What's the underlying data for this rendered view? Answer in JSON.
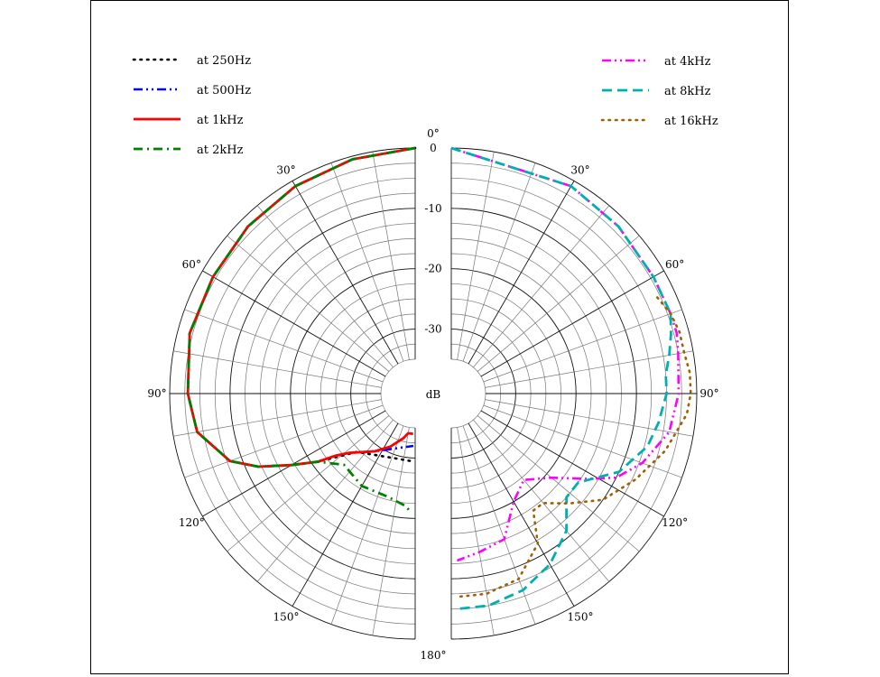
{
  "chart_data": {
    "type": "polar",
    "radial_unit": "dB",
    "radial_ticks": [
      "0",
      "-10",
      "-20",
      "-30"
    ],
    "rlim": [
      -35,
      0
    ],
    "angle_ticks": [
      "0°",
      "30°",
      "60°",
      "90°",
      "120°",
      "150°",
      "180°"
    ],
    "grid": true,
    "legend": [
      {
        "position": "top-left",
        "entries": [
          "at 250Hz",
          "at 500Hz",
          "at 1kHz",
          "at 2kHz"
        ]
      },
      {
        "position": "top-right",
        "entries": [
          "at 4kHz",
          "at 8kHz",
          "at 16kHz"
        ]
      }
    ],
    "series": [
      {
        "name": "at 250Hz",
        "side": "left",
        "color": "#000000",
        "dash": "dot",
        "points": [
          [
            0,
            0
          ],
          [
            15,
            -0.5
          ],
          [
            30,
            -1
          ],
          [
            45,
            -1.5
          ],
          [
            60,
            -2
          ],
          [
            75,
            -2
          ],
          [
            90,
            -3
          ],
          [
            100,
            -4
          ],
          [
            110,
            -8
          ],
          [
            115,
            -12
          ],
          [
            120,
            -17
          ],
          [
            125,
            -21
          ],
          [
            135,
            -27
          ],
          [
            165,
            -29.5
          ],
          [
            175,
            -29.5
          ],
          [
            178,
            -29.5
          ]
        ]
      },
      {
        "name": "at 500Hz",
        "side": "left",
        "color": "#0000ff",
        "dash": "dashdotdot",
        "points": [
          [
            0,
            0
          ],
          [
            15,
            -0.5
          ],
          [
            30,
            -1
          ],
          [
            45,
            -1.5
          ],
          [
            60,
            -2
          ],
          [
            75,
            -2
          ],
          [
            90,
            -3
          ],
          [
            100,
            -4
          ],
          [
            110,
            -8
          ],
          [
            115,
            -12
          ],
          [
            120,
            -17
          ],
          [
            125,
            -21
          ],
          [
            128,
            -24
          ],
          [
            132,
            -26
          ],
          [
            145,
            -29
          ],
          [
            160,
            -31
          ],
          [
            178,
            -32
          ]
        ]
      },
      {
        "name": "at 1kHz",
        "side": "left",
        "color": "#ff0000",
        "dash": "solid",
        "points": [
          [
            0,
            0
          ],
          [
            15,
            -0.5
          ],
          [
            30,
            -1
          ],
          [
            45,
            -1.5
          ],
          [
            60,
            -2
          ],
          [
            75,
            -2
          ],
          [
            90,
            -3
          ],
          [
            100,
            -4
          ],
          [
            110,
            -8
          ],
          [
            115,
            -12
          ],
          [
            120,
            -17
          ],
          [
            125,
            -21
          ],
          [
            128,
            -24
          ],
          [
            132,
            -26
          ],
          [
            145,
            -29
          ],
          [
            155,
            -31
          ],
          [
            165,
            -33
          ],
          [
            170,
            -34
          ],
          [
            177,
            -34
          ]
        ]
      },
      {
        "name": "at 2kHz",
        "side": "left",
        "color": "#008000",
        "dash": "dashdot",
        "points": [
          [
            0,
            0
          ],
          [
            15,
            -0.5
          ],
          [
            30,
            -1
          ],
          [
            45,
            -1.5
          ],
          [
            60,
            -2
          ],
          [
            75,
            -2
          ],
          [
            90,
            -3
          ],
          [
            100,
            -4
          ],
          [
            110,
            -8
          ],
          [
            115,
            -12
          ],
          [
            120,
            -17
          ],
          [
            125,
            -21
          ],
          [
            135,
            -24
          ],
          [
            150,
            -23
          ],
          [
            165,
            -23
          ],
          [
            175,
            -22
          ],
          [
            178,
            -21
          ]
        ]
      },
      {
        "name": "at 4kHz",
        "side": "right",
        "color": "#ff00ff",
        "dash": "dashdotdot",
        "points": [
          [
            0,
            0
          ],
          [
            30,
            -1
          ],
          [
            45,
            -1.5
          ],
          [
            60,
            -2
          ],
          [
            70,
            -2
          ],
          [
            75,
            -2
          ],
          [
            80,
            -2.5
          ],
          [
            90,
            -3
          ],
          [
            100,
            -4
          ],
          [
            110,
            -7
          ],
          [
            117,
            -10
          ],
          [
            122,
            -14
          ],
          [
            130,
            -19
          ],
          [
            140,
            -22
          ],
          [
            150,
            -20
          ],
          [
            160,
            -15
          ],
          [
            170,
            -14
          ],
          [
            178,
            -13
          ]
        ]
      },
      {
        "name": "at 8kHz",
        "side": "right",
        "color": "#00b0b0",
        "dash": "dash",
        "points": [
          [
            0,
            0
          ],
          [
            30,
            -1
          ],
          [
            45,
            -1.5
          ],
          [
            60,
            -2
          ],
          [
            70,
            -2
          ],
          [
            75,
            -3
          ],
          [
            80,
            -4
          ],
          [
            85,
            -5
          ],
          [
            90,
            -5
          ],
          [
            98,
            -6
          ],
          [
            105,
            -7
          ],
          [
            115,
            -10
          ],
          [
            125,
            -15
          ],
          [
            132,
            -15
          ],
          [
            140,
            -11
          ],
          [
            150,
            -8
          ],
          [
            160,
            -6
          ],
          [
            170,
            -5
          ],
          [
            178,
            -5
          ]
        ]
      },
      {
        "name": "at 16kHz",
        "side": "right",
        "color": "#a06000",
        "dash": "dot",
        "points": [
          [
            65,
            -3
          ],
          [
            70,
            -2
          ],
          [
            75,
            -1.5
          ],
          [
            80,
            -1.5
          ],
          [
            85,
            -1
          ],
          [
            90,
            -1
          ],
          [
            95,
            -1.5
          ],
          [
            105,
            -4
          ],
          [
            115,
            -7
          ],
          [
            125,
            -10
          ],
          [
            133,
            -14
          ],
          [
            140,
            -17
          ],
          [
            145,
            -17
          ],
          [
            150,
            -12
          ],
          [
            160,
            -8
          ],
          [
            170,
            -7
          ],
          [
            178,
            -7
          ]
        ]
      }
    ]
  }
}
